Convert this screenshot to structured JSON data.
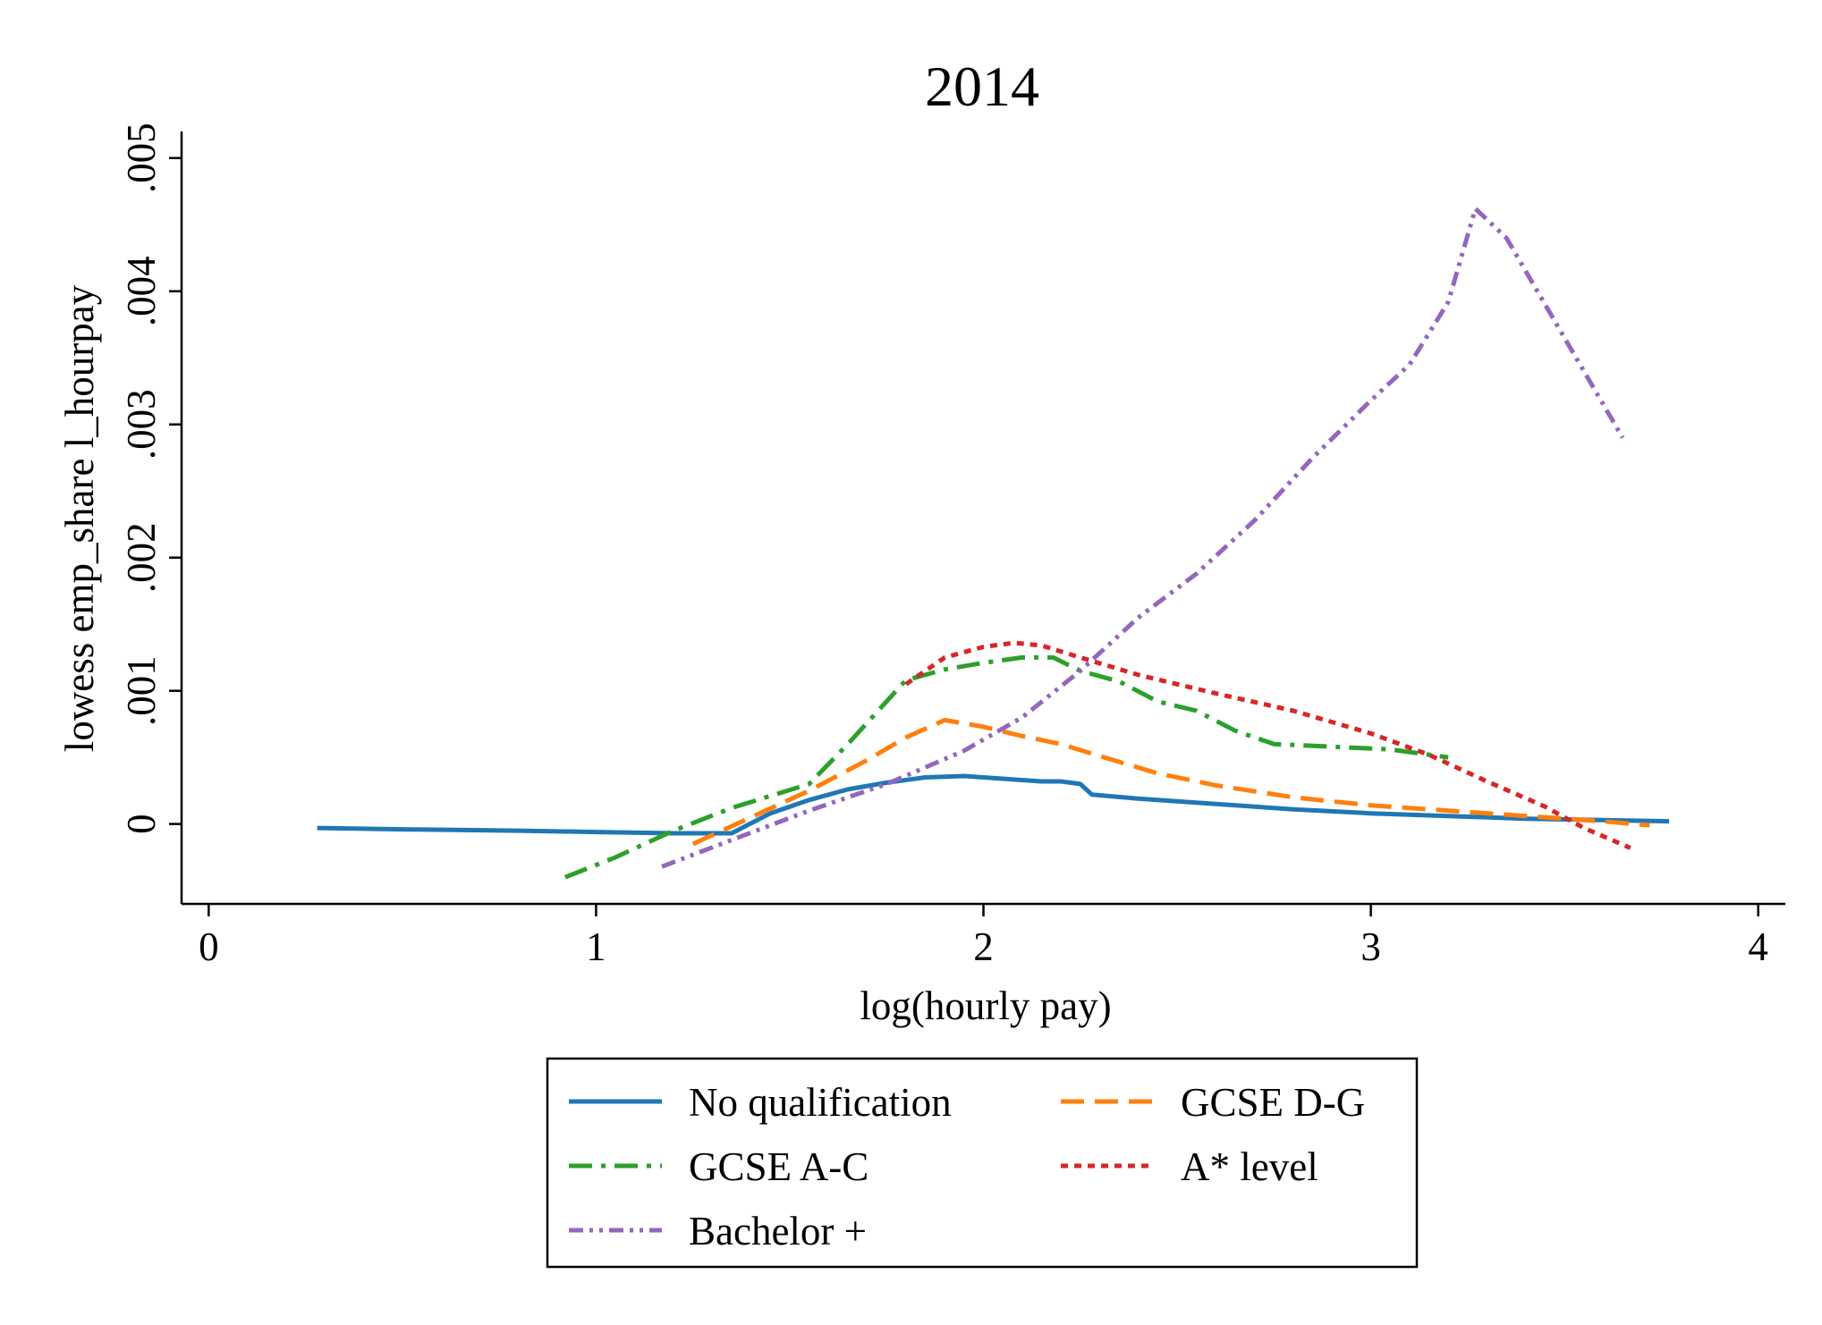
{
  "chart_data": {
    "type": "line",
    "title": "2014",
    "xlabel": "log(hourly pay)",
    "ylabel": "lowess emp_share l_hourpay",
    "xlim": [
      -0.07,
      4.07
    ],
    "ylim": [
      -0.0006,
      0.0052
    ],
    "xticks": [
      0,
      1,
      2,
      3,
      4
    ],
    "xtick_labels": [
      "0",
      "1",
      "2",
      "3",
      "4"
    ],
    "yticks": [
      0,
      0.001,
      0.002,
      0.003,
      0.004,
      0.005
    ],
    "ytick_labels": [
      "0",
      ".001",
      ".002",
      ".003",
      ".004",
      ".005"
    ],
    "grid": false,
    "legend_position": "bottom",
    "series": [
      {
        "name": "No qualification",
        "color": "#1f77b4",
        "style": "solid",
        "x": [
          0.28,
          0.5,
          0.8,
          1.0,
          1.2,
          1.35,
          1.45,
          1.55,
          1.65,
          1.75,
          1.85,
          1.95,
          2.05,
          2.15,
          2.2,
          2.25,
          2.28,
          2.4,
          2.6,
          2.8,
          3.0,
          3.2,
          3.4,
          3.6,
          3.77
        ],
        "y": [
          -3e-05,
          -4e-05,
          -5e-05,
          -6e-05,
          -7e-05,
          -7e-05,
          8e-05,
          0.00018,
          0.00026,
          0.00031,
          0.00035,
          0.00036,
          0.00034,
          0.00032,
          0.00032,
          0.0003,
          0.00022,
          0.00019,
          0.00015,
          0.00011,
          8e-05,
          6e-05,
          4e-05,
          3e-05,
          2e-05
        ]
      },
      {
        "name": "GCSE D-G",
        "color": "#ff7f0e",
        "style": "dashed",
        "x": [
          1.25,
          1.4,
          1.55,
          1.7,
          1.8,
          1.9,
          2.0,
          2.1,
          2.2,
          2.3,
          2.45,
          2.6,
          2.8,
          3.0,
          3.2,
          3.4,
          3.6,
          3.72
        ],
        "y": [
          -0.00015,
          5e-05,
          0.00025,
          0.00048,
          0.00065,
          0.00078,
          0.00073,
          0.00066,
          0.0006,
          0.00051,
          0.00038,
          0.00029,
          0.0002,
          0.00014,
          0.0001,
          6e-05,
          2e-05,
          -1e-05
        ]
      },
      {
        "name": "GCSE A-C",
        "color": "#2ca02c",
        "style": "dashdot",
        "x": [
          0.92,
          1.05,
          1.2,
          1.35,
          1.55,
          1.65,
          1.8,
          1.9,
          2.0,
          2.1,
          2.18,
          2.25,
          2.35,
          2.45,
          2.55,
          2.65,
          2.75,
          2.9,
          3.05,
          3.2
        ],
        "y": [
          -0.0004,
          -0.00025,
          -5e-05,
          0.00012,
          0.0003,
          0.0006,
          0.00108,
          0.00116,
          0.00121,
          0.00125,
          0.00125,
          0.00115,
          0.00107,
          0.00092,
          0.00085,
          0.0007,
          0.0006,
          0.00058,
          0.00056,
          0.0005
        ]
      },
      {
        "name": "A* level",
        "color": "#d62728",
        "style": "dotted",
        "x": [
          1.8,
          1.9,
          2.0,
          2.08,
          2.15,
          2.25,
          2.4,
          2.6,
          2.8,
          3.0,
          3.15,
          3.3,
          3.45,
          3.55,
          3.67
        ],
        "y": [
          0.00105,
          0.00125,
          0.00133,
          0.00136,
          0.00134,
          0.00125,
          0.00112,
          0.00098,
          0.00085,
          0.00068,
          0.00052,
          0.00032,
          0.00013,
          -3e-05,
          -0.00018
        ]
      },
      {
        "name": "Bachelor +",
        "color": "#9467bd",
        "style": "dashdotdot",
        "x": [
          1.17,
          1.35,
          1.55,
          1.75,
          1.95,
          2.1,
          2.25,
          2.4,
          2.55,
          2.7,
          2.85,
          3.0,
          3.1,
          3.2,
          3.27,
          3.35,
          3.5,
          3.65
        ],
        "y": [
          -0.00032,
          -0.00012,
          0.0001,
          0.0003,
          0.00055,
          0.0008,
          0.00115,
          0.00155,
          0.00188,
          0.00228,
          0.00275,
          0.00318,
          0.00345,
          0.00392,
          0.00462,
          0.0044,
          0.00365,
          0.0029
        ]
      }
    ]
  }
}
